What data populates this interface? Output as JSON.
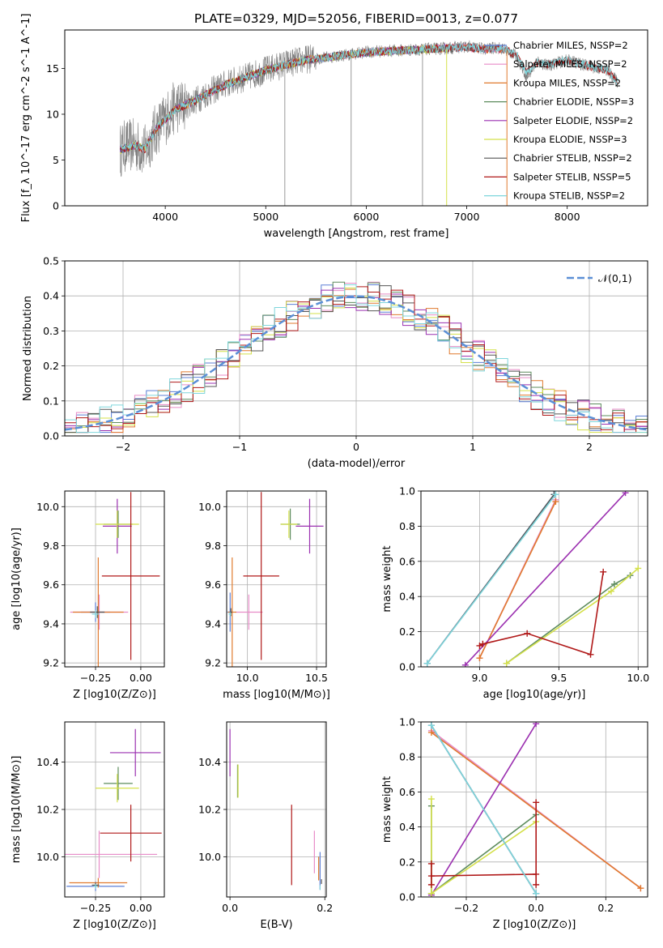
{
  "page": {
    "title": "PLATE=0329, MJD=52056, FIBERID=0013, z=0.077"
  },
  "chart_data": [
    {
      "id": "spectrum",
      "type": "line",
      "title": "PLATE=0329, MJD=52056, FIBERID=0013, z=0.077",
      "xlabel": "wavelength [Angstrom, rest frame]",
      "ylabel": "Flux [f_λ 10^-17 erg cm^-2 s^-1 A^-1]",
      "xlim": [
        3000,
        8800
      ],
      "ylim": [
        0,
        19.2
      ],
      "xticks": [
        4000,
        5000,
        6000,
        7000,
        8000
      ],
      "yticks": [
        0,
        5,
        10,
        15
      ],
      "grid": false,
      "legend_position": "top-right",
      "observed": {
        "color": "#808080",
        "x": [
          3550,
          3600,
          3700,
          3800,
          3900,
          4000,
          4100,
          4200,
          4300,
          4400,
          4600,
          4800,
          5000,
          5200,
          5400,
          5600,
          5800,
          6000,
          6200,
          6400,
          6600,
          6800,
          7000,
          7200,
          7300,
          7400,
          7500,
          7600,
          7700,
          7800,
          8000,
          8200,
          8400,
          8500
        ],
        "y": [
          6.0,
          6.5,
          6.6,
          6.0,
          8.2,
          9.5,
          10.8,
          11.0,
          11.5,
          12.2,
          13.3,
          14.0,
          14.8,
          15.5,
          16.0,
          16.2,
          16.5,
          16.8,
          16.9,
          17.0,
          17.1,
          17.2,
          17.4,
          17.1,
          17.3,
          17.0,
          16.3,
          14.0,
          15.8,
          15.3,
          15.9,
          15.3,
          14.8,
          13.5
        ]
      },
      "model": {
        "x": [
          3550,
          3600,
          3700,
          3800,
          3900,
          4000,
          4100,
          4200,
          4300,
          4400,
          4600,
          4800,
          5000,
          5200,
          5400,
          5600,
          5800,
          6000,
          6200,
          6400,
          6600,
          6800,
          7000,
          7200,
          7300,
          7400,
          7500,
          7600,
          7700,
          7800,
          8000,
          8200,
          8400,
          8500
        ],
        "y": [
          6.1,
          6.3,
          6.6,
          6.2,
          8.3,
          9.4,
          10.5,
          11.0,
          11.5,
          12.1,
          13.2,
          14.0,
          14.8,
          15.4,
          15.9,
          16.2,
          16.5,
          16.7,
          16.9,
          17.0,
          17.1,
          17.2,
          17.3,
          17.1,
          17.2,
          17.0,
          16.4,
          14.5,
          15.7,
          15.4,
          15.9,
          15.3,
          14.8,
          13.6
        ]
      },
      "series": [
        {
          "name": "Chabrier MILES, N_SSP=2",
          "color": "#5b7fd6",
          "xmax": 7400
        },
        {
          "name": "Salpeter MILES, N_SSP=2",
          "color": "#e88cc8",
          "xmax": 7400
        },
        {
          "name": "Kroupa MILES, N_SSP=2",
          "color": "#e07a2e",
          "xmax": 7400
        },
        {
          "name": "Chabrier ELODIE, N_SSP=3",
          "color": "#5e8c5e",
          "xmax": 6800
        },
        {
          "name": "Salpeter ELODIE, N_SSP=2",
          "color": "#9b30b0",
          "xmax": 6800
        },
        {
          "name": "Kroupa ELODIE, N_SSP=3",
          "color": "#d4e04a",
          "xmax": 6800
        },
        {
          "name": "Chabrier STELIB, N_SSP=2",
          "color": "#555555",
          "xmax": 8500
        },
        {
          "name": "Salpeter STELIB, N_SSP=5",
          "color": "#b01818",
          "xmax": 8500
        },
        {
          "name": "Kroupa STELIB, N_SSP=2",
          "color": "#7fd6dc",
          "xmax": 8500
        }
      ]
    },
    {
      "id": "residuals",
      "type": "line",
      "xlabel": "(data-model)/error",
      "ylabel": "Normed distribution",
      "xlim": [
        -2.5,
        2.5
      ],
      "ylim": [
        0,
        0.5
      ],
      "xticks": [
        -2,
        -1,
        0,
        1,
        2
      ],
      "yticks": [
        0.0,
        0.1,
        0.2,
        0.3,
        0.4,
        0.5
      ],
      "grid": true,
      "legend_position": "top-right",
      "reference": {
        "name": "𝒩(0,1)",
        "color": "#5b8fd6"
      }
    },
    {
      "id": "age_vs_z",
      "type": "scatter",
      "xlabel": "Z [log10(Z/Z⊙)]",
      "ylabel": "age [log10(age/yr)]",
      "xlim": [
        -0.42,
        0.13
      ],
      "ylim": [
        9.18,
        10.08
      ],
      "xticks": [
        -0.25,
        0.0
      ],
      "xticklabels": [
        "−0.25",
        "0.00"
      ],
      "yticks": [
        9.2,
        9.4,
        9.6,
        9.8,
        10.0
      ],
      "grid": true,
      "points": [
        {
          "series": "Chabrier MILES",
          "x": -0.25,
          "y": 9.46,
          "xerr": 0.08,
          "yerr": 0.05,
          "color": "#5b7fd6"
        },
        {
          "series": "Salpeter MILES",
          "x": -0.23,
          "y": 9.46,
          "xerr": 0.16,
          "yerr": 0.09,
          "color": "#e88cc8"
        },
        {
          "series": "Kroupa MILES",
          "x": -0.235,
          "y": 9.46,
          "xerr": 0.14,
          "yerr": 0.28,
          "color": "#e07a2e"
        },
        {
          "series": "Chabrier ELODIE",
          "x": -0.125,
          "y": 9.91,
          "xerr": 0.08,
          "yerr": 0.07,
          "color": "#5e8c5e"
        },
        {
          "series": "Salpeter ELODIE",
          "x": -0.13,
          "y": 9.9,
          "xerr": 0.08,
          "yerr": 0.14,
          "color": "#9b30b0"
        },
        {
          "series": "Kroupa ELODIE",
          "x": -0.13,
          "y": 9.91,
          "xerr": 0.12,
          "yerr": 0.07,
          "color": "#d4e04a"
        },
        {
          "series": "Chabrier STELIB",
          "x": -0.24,
          "y": 9.46,
          "xerr": 0.04,
          "yerr": 0.03,
          "color": "#555555"
        },
        {
          "series": "Salpeter STELIB",
          "x": -0.055,
          "y": 9.645,
          "xerr": 0.16,
          "yerr": 0.43,
          "color": "#b01818"
        },
        {
          "series": "Kroupa STELIB",
          "x": -0.25,
          "y": 9.45,
          "xerr": 0.02,
          "yerr": 0.02,
          "color": "#7fd6dc"
        }
      ]
    },
    {
      "id": "age_vs_mass",
      "type": "scatter",
      "xlabel": "mass [log10(M/M⊙)]",
      "ylabel": "",
      "xlim": [
        9.85,
        10.57
      ],
      "ylim": [
        9.18,
        10.08
      ],
      "xticks": [
        10.0,
        10.5
      ],
      "yticks": [
        9.2,
        9.4,
        9.6,
        9.8,
        10.0
      ],
      "grid": true,
      "points": [
        {
          "series": "Chabrier MILES",
          "x": 9.875,
          "y": 9.46,
          "xerr": 0.02,
          "yerr": 0.1,
          "color": "#5b7fd6"
        },
        {
          "series": "Salpeter MILES",
          "x": 10.01,
          "y": 9.46,
          "xerr": 0.1,
          "yerr": 0.09,
          "color": "#e88cc8"
        },
        {
          "series": "Kroupa MILES",
          "x": 9.89,
          "y": 9.46,
          "xerr": 0.03,
          "yerr": 0.28,
          "color": "#e07a2e"
        },
        {
          "series": "Chabrier ELODIE",
          "x": 10.31,
          "y": 9.91,
          "xerr": 0.07,
          "yerr": 0.08,
          "color": "#5e8c5e"
        },
        {
          "series": "Salpeter ELODIE",
          "x": 10.45,
          "y": 9.9,
          "xerr": 0.1,
          "yerr": 0.14,
          "color": "#9b30b0"
        },
        {
          "series": "Kroupa ELODIE",
          "x": 10.3,
          "y": 9.91,
          "xerr": 0.06,
          "yerr": 0.07,
          "color": "#d4e04a"
        },
        {
          "series": "Chabrier STELIB",
          "x": 9.88,
          "y": 9.46,
          "xerr": 0.01,
          "yerr": 0.02,
          "color": "#555555"
        },
        {
          "series": "Salpeter STELIB",
          "x": 10.1,
          "y": 9.645,
          "xerr": 0.13,
          "yerr": 0.43,
          "color": "#b01818"
        },
        {
          "series": "Kroupa STELIB",
          "x": 9.875,
          "y": 9.45,
          "xerr": 0.01,
          "yerr": 0.01,
          "color": "#7fd6dc"
        }
      ]
    },
    {
      "id": "weight_vs_age",
      "type": "line",
      "xlabel": "age [log10(age/yr)]",
      "ylabel": "mass weight",
      "xlim": [
        8.63,
        10.06
      ],
      "ylim": [
        0,
        1.0
      ],
      "xticks": [
        9.0,
        9.5,
        10.0
      ],
      "yticks": [
        0.0,
        0.2,
        0.4,
        0.6,
        0.8,
        1.0
      ],
      "grid": true,
      "series": [
        {
          "name": "Chabrier MILES",
          "color": "#5b7fd6",
          "x": [
            8.67,
            9.47
          ],
          "y": [
            0.02,
            0.98
          ]
        },
        {
          "name": "Salpeter MILES",
          "color": "#e88cc8",
          "x": [
            9.0,
            9.48
          ],
          "y": [
            0.05,
            0.95
          ]
        },
        {
          "name": "Kroupa MILES",
          "color": "#e07a2e",
          "x": [
            9.0,
            9.48
          ],
          "y": [
            0.05,
            0.94
          ]
        },
        {
          "name": "Chabrier ELODIE",
          "color": "#5e8c5e",
          "x": [
            9.17,
            9.85,
            9.95
          ],
          "y": [
            0.02,
            0.47,
            0.52
          ]
        },
        {
          "name": "Salpeter ELODIE",
          "color": "#9b30b0",
          "x": [
            8.91,
            9.92
          ],
          "y": [
            0.01,
            0.99
          ]
        },
        {
          "name": "Kroupa ELODIE",
          "color": "#d4e04a",
          "x": [
            9.17,
            9.83,
            10.0
          ],
          "y": [
            0.02,
            0.43,
            0.56
          ]
        },
        {
          "name": "Chabrier STELIB",
          "color": "#555555",
          "x": [
            8.67,
            9.47
          ],
          "y": [
            0.02,
            0.98
          ]
        },
        {
          "name": "Salpeter STELIB",
          "color": "#b01818",
          "x": [
            9.0,
            9.02,
            9.3,
            9.7,
            9.78
          ],
          "y": [
            0.12,
            0.13,
            0.19,
            0.07,
            0.54
          ]
        },
        {
          "name": "Kroupa STELIB",
          "color": "#7fd6dc",
          "x": [
            8.67,
            9.48
          ],
          "y": [
            0.02,
            0.98
          ]
        }
      ]
    },
    {
      "id": "mass_vs_z",
      "type": "scatter",
      "xlabel": "Z [log10(Z/Z⊙)]",
      "ylabel": "mass [log10(M/M⊙)]",
      "xlim": [
        -0.42,
        0.13
      ],
      "ylim": [
        9.83,
        10.57
      ],
      "xticks": [
        -0.25,
        0.0
      ],
      "xticklabels": [
        "−0.25",
        "0.00"
      ],
      "yticks": [
        10.0,
        10.2,
        10.4
      ],
      "grid": true,
      "points": [
        {
          "series": "Chabrier MILES",
          "x": -0.25,
          "y": 9.875,
          "xerr": 0.16,
          "yerr": 0.02,
          "color": "#5b7fd6"
        },
        {
          "series": "Salpeter MILES",
          "x": -0.23,
          "y": 10.01,
          "xerr": 0.32,
          "yerr": 0.1,
          "color": "#e88cc8"
        },
        {
          "series": "Kroupa MILES",
          "x": -0.235,
          "y": 9.89,
          "xerr": 0.16,
          "yerr": 0.02,
          "color": "#e07a2e"
        },
        {
          "series": "Chabrier ELODIE",
          "x": -0.125,
          "y": 10.31,
          "xerr": 0.08,
          "yerr": 0.07,
          "color": "#5e8c5e"
        },
        {
          "series": "Salpeter ELODIE",
          "x": -0.03,
          "y": 10.44,
          "xerr": 0.14,
          "yerr": 0.1,
          "color": "#9b30b0"
        },
        {
          "series": "Kroupa ELODIE",
          "x": -0.13,
          "y": 10.29,
          "xerr": 0.12,
          "yerr": 0.06,
          "color": "#d4e04a"
        },
        {
          "series": "Chabrier STELIB",
          "x": -0.25,
          "y": 9.88,
          "xerr": 0.02,
          "yerr": 0.01,
          "color": "#555555"
        },
        {
          "series": "Salpeter STELIB",
          "x": -0.055,
          "y": 10.1,
          "xerr": 0.17,
          "yerr": 0.12,
          "color": "#b01818"
        },
        {
          "series": "Kroupa STELIB",
          "x": -0.25,
          "y": 9.875,
          "xerr": 0.01,
          "yerr": 0.01,
          "color": "#7fd6dc"
        }
      ]
    },
    {
      "id": "mass_vs_ebv",
      "type": "scatter",
      "xlabel": "E(B-V)",
      "ylabel": "",
      "xlim": [
        -0.007,
        0.203
      ],
      "ylim": [
        9.83,
        10.57
      ],
      "xticks": [
        0.0,
        0.2
      ],
      "yticks": [
        10.0,
        10.2,
        10.4
      ],
      "grid": true,
      "points": [
        {
          "series": "Chabrier MILES",
          "x": 0.19,
          "y": 9.94,
          "xerr": 0.0,
          "yerr": 0.08,
          "color": "#5b7fd6"
        },
        {
          "series": "Salpeter MILES",
          "x": 0.178,
          "y": 10.02,
          "xerr": 0.0,
          "yerr": 0.09,
          "color": "#e88cc8"
        },
        {
          "series": "Kroupa MILES",
          "x": 0.187,
          "y": 9.95,
          "xerr": 0.0,
          "yerr": 0.05,
          "color": "#e07a2e"
        },
        {
          "series": "Chabrier ELODIE",
          "x": 0.016,
          "y": 10.32,
          "xerr": 0.0,
          "yerr": 0.07,
          "color": "#5e8c5e"
        },
        {
          "series": "Salpeter ELODIE",
          "x": 0.0,
          "y": 10.44,
          "xerr": 0.0,
          "yerr": 0.1,
          "color": "#9b30b0"
        },
        {
          "series": "Kroupa ELODIE",
          "x": 0.017,
          "y": 10.32,
          "xerr": 0.0,
          "yerr": 0.07,
          "color": "#d4e04a"
        },
        {
          "series": "Chabrier STELIB",
          "x": 0.193,
          "y": 9.895,
          "xerr": 0.0,
          "yerr": 0.01,
          "color": "#555555"
        },
        {
          "series": "Salpeter STELIB",
          "x": 0.13,
          "y": 10.05,
          "xerr": 0.0,
          "yerr": 0.17,
          "color": "#b01818"
        },
        {
          "series": "Kroupa STELIB",
          "x": 0.19,
          "y": 9.87,
          "xerr": 0.0,
          "yerr": 0.01,
          "color": "#7fd6dc"
        }
      ]
    },
    {
      "id": "weight_vs_z",
      "type": "line",
      "xlabel": "Z [log10(Z/Z⊙)]",
      "ylabel": "mass weight",
      "xlim": [
        -0.33,
        0.32
      ],
      "ylim": [
        0,
        1.0
      ],
      "xticks": [
        -0.2,
        0.0,
        0.2
      ],
      "xticklabels": [
        "−0.2",
        "0.0",
        "0.2"
      ],
      "yticks": [
        0.0,
        0.2,
        0.4,
        0.6,
        0.8,
        1.0
      ],
      "grid": true,
      "series": [
        {
          "name": "Chabrier MILES",
          "color": "#5b7fd6",
          "x": [
            -0.3,
            0.0
          ],
          "y": [
            0.98,
            0.02
          ]
        },
        {
          "name": "Salpeter MILES",
          "color": "#e88cc8",
          "x": [
            -0.3,
            0.3
          ],
          "y": [
            0.95,
            0.05
          ]
        },
        {
          "name": "Kroupa MILES",
          "color": "#e07a2e",
          "x": [
            -0.3,
            0.3
          ],
          "y": [
            0.94,
            0.05
          ]
        },
        {
          "name": "Chabrier ELODIE",
          "color": "#5e8c5e",
          "x": [
            -0.3,
            -0.3,
            -0.3,
            0.0
          ],
          "y": [
            0.52,
            0.02,
            0.02,
            0.47
          ]
        },
        {
          "name": "Salpeter ELODIE",
          "color": "#9b30b0",
          "x": [
            -0.3,
            0.0
          ],
          "y": [
            0.01,
            0.99
          ]
        },
        {
          "name": "Kroupa ELODIE",
          "color": "#d4e04a",
          "x": [
            -0.3,
            -0.3,
            0.0
          ],
          "y": [
            0.56,
            0.02,
            0.43
          ]
        },
        {
          "name": "Chabrier STELIB",
          "color": "#555555",
          "x": [
            -0.3,
            0.0
          ],
          "y": [
            0.98,
            0.02
          ]
        },
        {
          "name": "Salpeter STELIB",
          "color": "#b01818",
          "x": [
            -0.3,
            -0.3,
            -0.3,
            0.0,
            0.0,
            0.0
          ],
          "y": [
            0.19,
            0.07,
            0.12,
            0.13,
            0.07,
            0.54
          ]
        },
        {
          "name": "Kroupa STELIB",
          "color": "#7fd6dc",
          "x": [
            -0.3,
            0.0
          ],
          "y": [
            0.98,
            0.02
          ]
        }
      ]
    }
  ]
}
